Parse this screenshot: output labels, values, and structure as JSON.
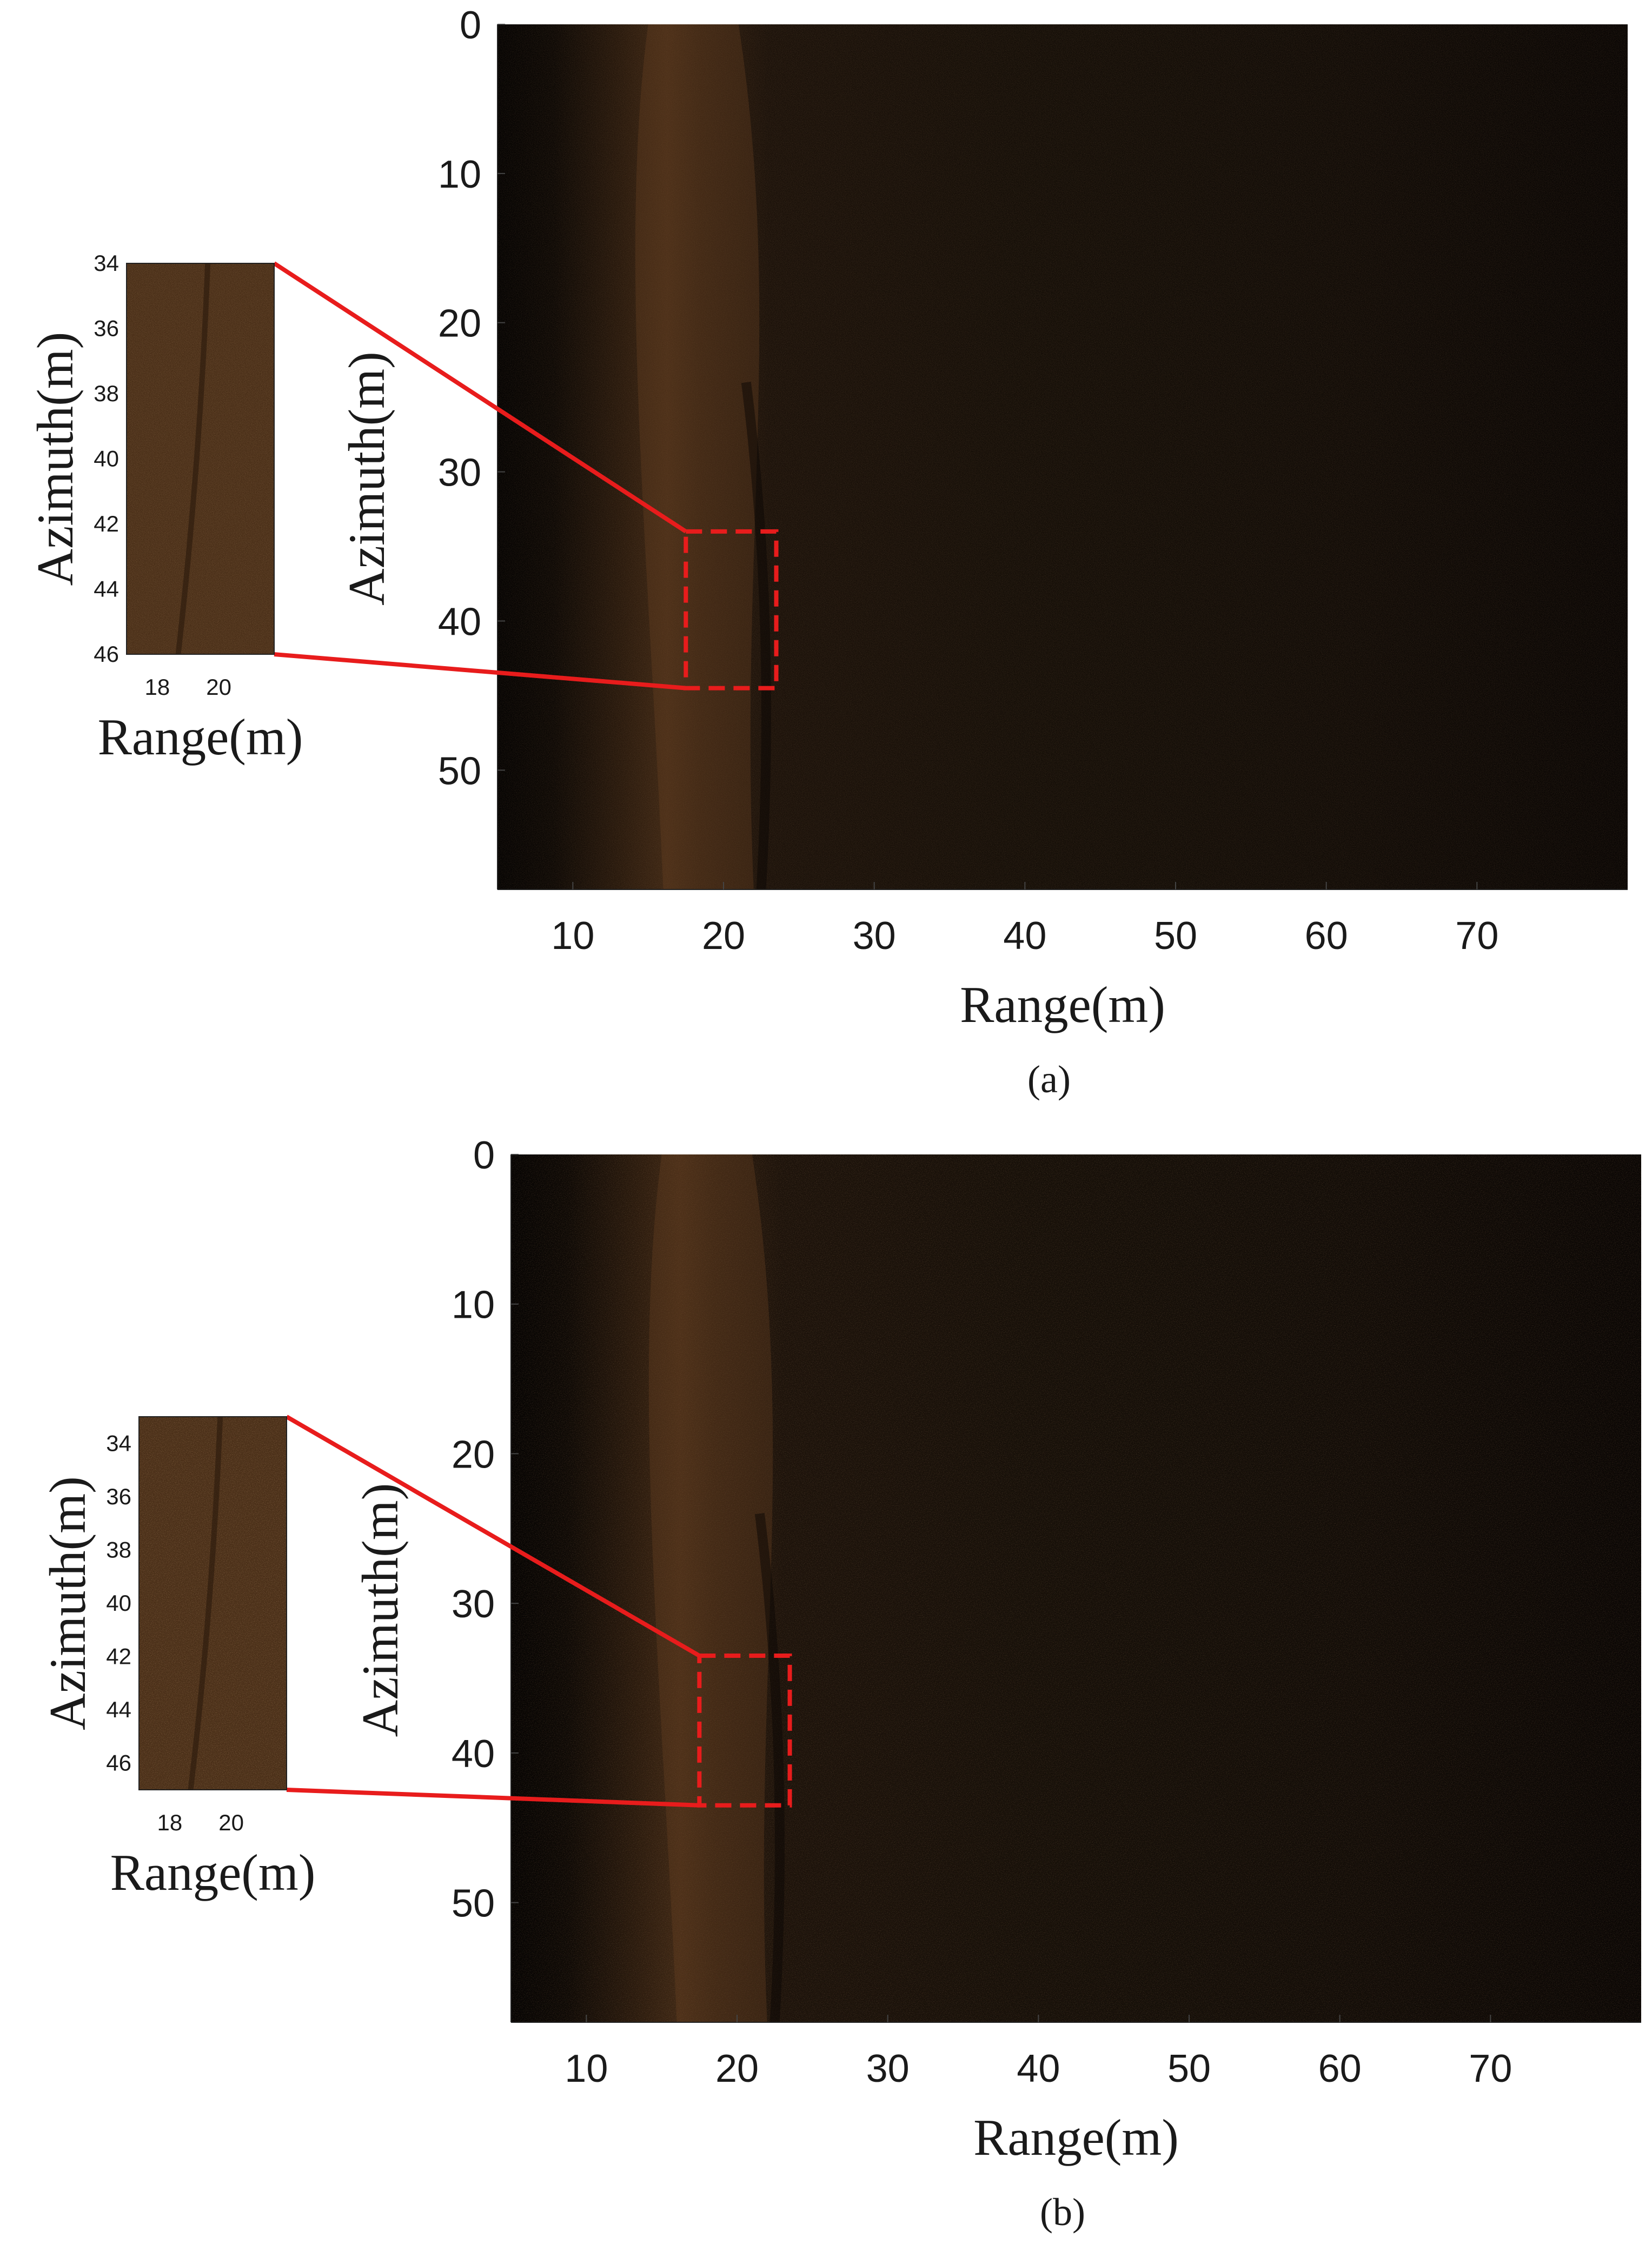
{
  "chart_data": [
    {
      "panel": "a",
      "type": "heatmap",
      "caption": "(a)",
      "main": {
        "xlabel": "Range(m)",
        "ylabel": "Azimuth(m)",
        "xlim": [
          5,
          80
        ],
        "ylim": [
          0,
          58
        ],
        "y_reversed": true,
        "xticks": [
          10,
          20,
          30,
          40,
          50,
          60,
          70
        ],
        "yticks": [
          0,
          10,
          20,
          30,
          40,
          50
        ],
        "zoom_box": {
          "x": [
            17.5,
            23.5
          ],
          "y": [
            34,
            44.5
          ]
        }
      },
      "inset": {
        "xlabel": "Range(m)",
        "ylabel": "Azimuth(m)",
        "xlim": [
          17,
          21.8
        ],
        "ylim": [
          34,
          46
        ],
        "xticks": [
          18,
          20
        ],
        "yticks": [
          34,
          36,
          38,
          40,
          42,
          44,
          46
        ]
      },
      "colors": {
        "callout": "#e81c1c",
        "image_dark": "#1e140b",
        "image_bright": "#8a5a32"
      }
    },
    {
      "panel": "b",
      "type": "heatmap",
      "caption": "(b)",
      "main": {
        "xlabel": "Range(m)",
        "ylabel": "Azimuth(m)",
        "xlim": [
          5,
          80
        ],
        "ylim": [
          0,
          58
        ],
        "y_reversed": true,
        "xticks": [
          10,
          20,
          30,
          40,
          50,
          60,
          70
        ],
        "yticks": [
          0,
          10,
          20,
          30,
          40,
          50
        ],
        "zoom_box": {
          "x": [
            17.5,
            23.5
          ],
          "y": [
            33.5,
            43.5
          ]
        }
      },
      "inset": {
        "xlabel": "Range(m)",
        "ylabel": "Azimuth(m)",
        "xlim": [
          17,
          21.8
        ],
        "ylim": [
          33,
          47
        ],
        "xticks": [
          18,
          20
        ],
        "yticks": [
          34,
          36,
          38,
          40,
          42,
          44,
          46
        ]
      },
      "colors": {
        "callout": "#e81c1c",
        "image_dark": "#1e140b",
        "image_bright": "#8a5a32"
      }
    }
  ]
}
